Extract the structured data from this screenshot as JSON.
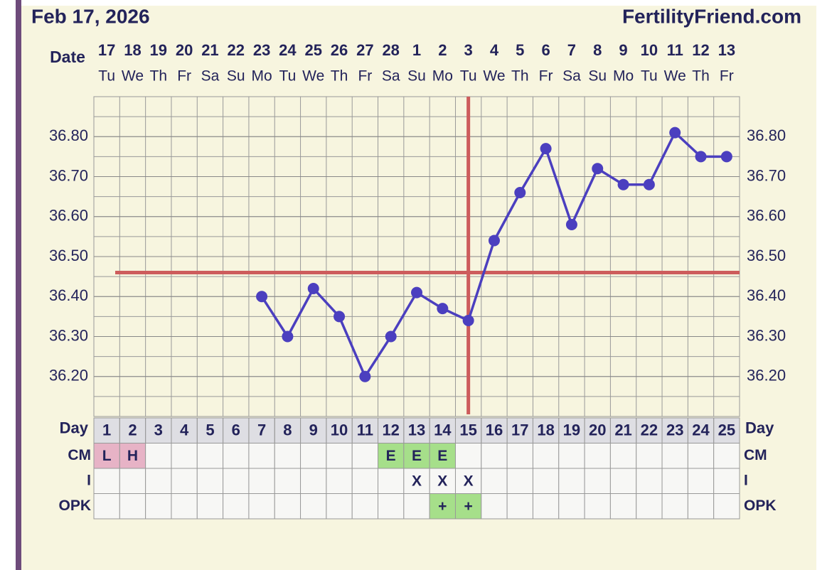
{
  "chart_data": {
    "type": "line",
    "title": "Feb 17, 2026",
    "site": "FertilityFriend.com",
    "date_label": "Date",
    "dates": [
      "17",
      "18",
      "19",
      "20",
      "21",
      "22",
      "23",
      "24",
      "25",
      "26",
      "27",
      "28",
      "1",
      "2",
      "3",
      "4",
      "5",
      "6",
      "7",
      "8",
      "9",
      "10",
      "11",
      "12",
      "13"
    ],
    "weekdays": [
      "Tu",
      "We",
      "Th",
      "Fr",
      "Sa",
      "Su",
      "Mo",
      "Tu",
      "We",
      "Th",
      "Fr",
      "Sa",
      "Su",
      "Mo",
      "Tu",
      "We",
      "Th",
      "Fr",
      "Sa",
      "Su",
      "Mo",
      "Tu",
      "We",
      "Th",
      "Fr"
    ],
    "day_label": "Day",
    "categories": [
      1,
      2,
      3,
      4,
      5,
      6,
      7,
      8,
      9,
      10,
      11,
      12,
      13,
      14,
      15,
      16,
      17,
      18,
      19,
      20,
      21,
      22,
      23,
      24,
      25
    ],
    "series": [
      {
        "color": "#4b3fbf",
        "values": [
          null,
          null,
          null,
          null,
          null,
          null,
          36.4,
          36.3,
          36.42,
          36.35,
          36.2,
          36.3,
          36.41,
          36.37,
          36.34,
          36.54,
          36.66,
          36.77,
          36.58,
          36.72,
          36.68,
          36.68,
          36.81,
          36.75,
          36.75
        ]
      }
    ],
    "ylim": [
      36.1,
      36.9
    ],
    "yticks": [
      {
        "value": 36.2,
        "label": "36.20"
      },
      {
        "value": 36.3,
        "label": "36.30"
      },
      {
        "value": 36.4,
        "label": "36.40"
      },
      {
        "value": 36.5,
        "label": "36.50"
      },
      {
        "value": 36.6,
        "label": "36.60"
      },
      {
        "value": 36.7,
        "label": "36.70"
      },
      {
        "value": 36.8,
        "label": "36.80"
      }
    ],
    "grid": true,
    "coverline": 36.46,
    "ovulation_day": 15,
    "marker_line_color": "#cd5c5c",
    "rows": [
      {
        "label": "CM",
        "cells": [
          "L",
          "H",
          null,
          null,
          null,
          null,
          null,
          null,
          null,
          null,
          null,
          "E",
          "E",
          "E",
          null,
          null,
          null,
          null,
          null,
          null,
          null,
          null,
          null,
          null,
          null
        ]
      },
      {
        "label": "I",
        "cells": [
          null,
          null,
          null,
          null,
          null,
          null,
          null,
          null,
          null,
          null,
          null,
          null,
          "X",
          "X",
          "X",
          null,
          null,
          null,
          null,
          null,
          null,
          null,
          null,
          null,
          null
        ]
      },
      {
        "label": "OPK",
        "cells": [
          null,
          null,
          null,
          null,
          null,
          null,
          null,
          null,
          null,
          null,
          null,
          null,
          null,
          "+",
          "+",
          null,
          null,
          null,
          null,
          null,
          null,
          null,
          null,
          null,
          null
        ]
      }
    ],
    "cell_colors": {
      "L": "#e7b3c6",
      "H": "#e7b3c6",
      "E": "#a6df8a",
      "+": "#a6df8a"
    }
  }
}
